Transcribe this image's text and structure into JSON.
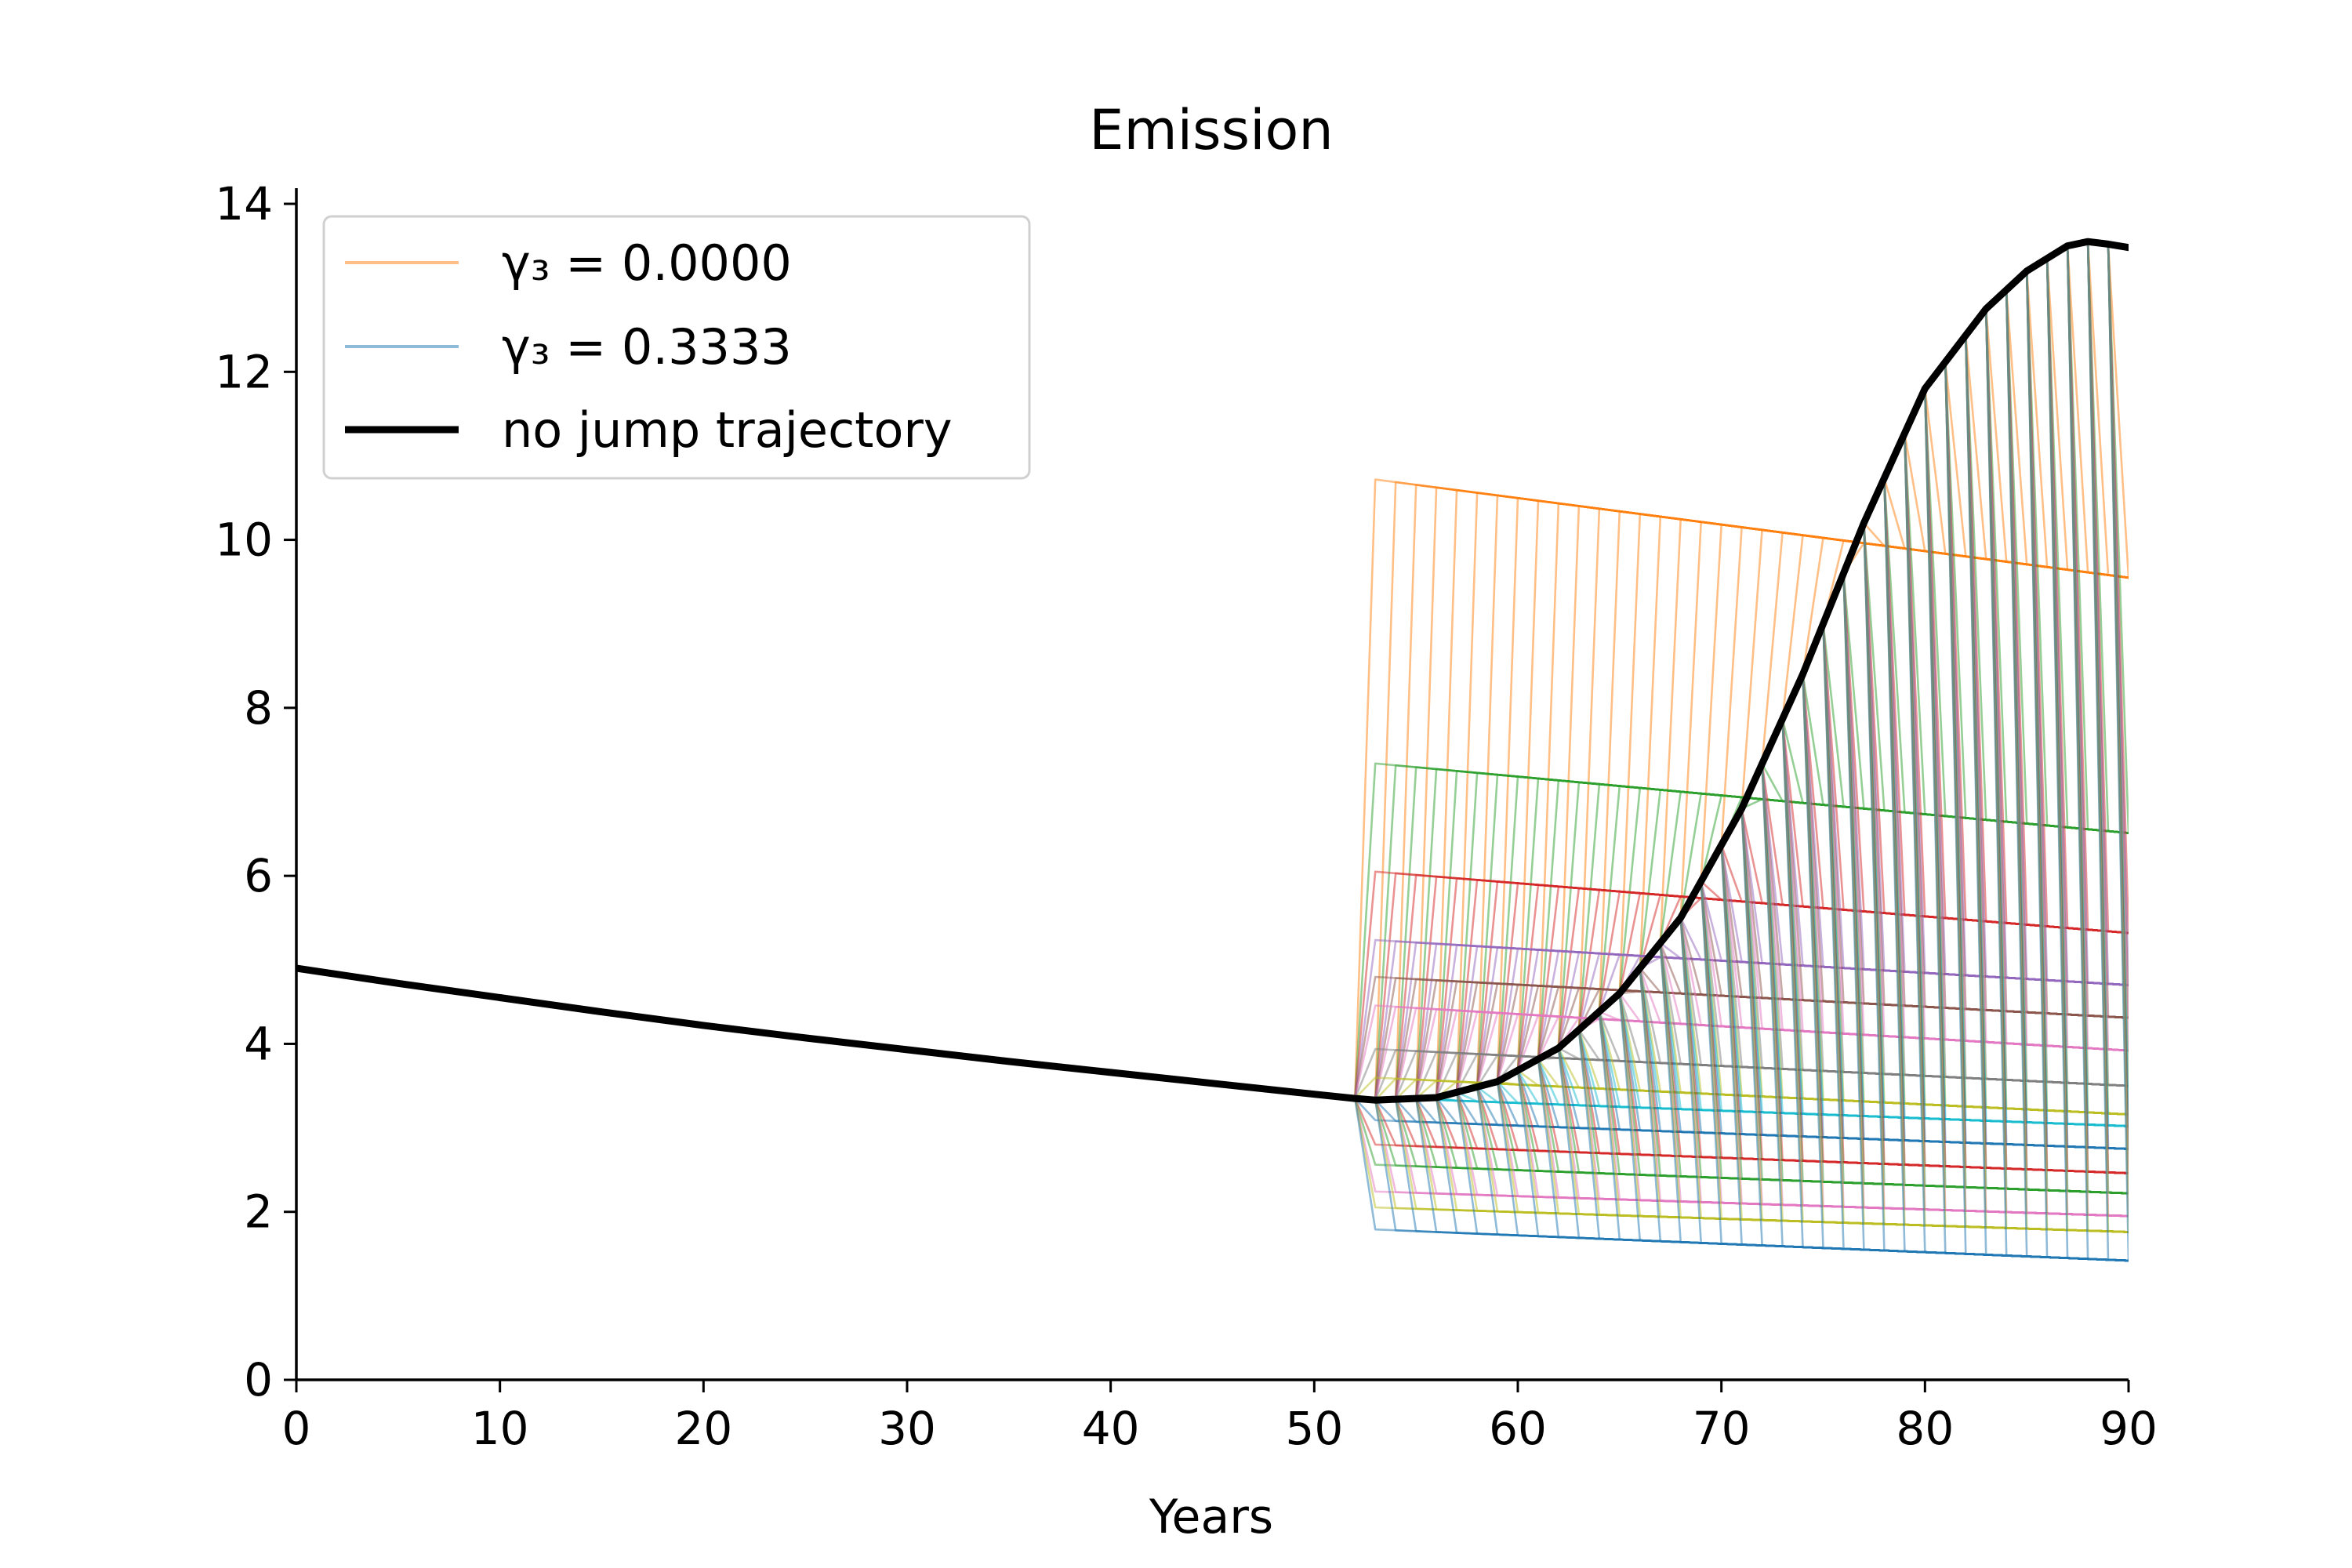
{
  "chart_data": {
    "type": "line",
    "title": "Emission",
    "xlabel": "Years",
    "ylabel": "",
    "xlim": [
      0,
      90
    ],
    "ylim": [
      0,
      14
    ],
    "xticks": [
      0,
      10,
      20,
      30,
      40,
      50,
      60,
      70,
      80,
      90
    ],
    "yticks": [
      0,
      2,
      4,
      6,
      8,
      10,
      12,
      14
    ],
    "legend_position": "upper-left",
    "legend": [
      {
        "label": "γ₃ = 0.0000",
        "color": "#ff7f0e",
        "style": "thin-faded"
      },
      {
        "label": "γ₃ = 0.3333",
        "color": "#1f77b4",
        "style": "thin-faded"
      },
      {
        "label": "no jump trajectory",
        "color": "#000000",
        "style": "thick"
      }
    ],
    "no_jump_trajectory": {
      "x": [
        0,
        5,
        10,
        15,
        20,
        25,
        30,
        35,
        40,
        45,
        50,
        52,
        53,
        56,
        59,
        62,
        65,
        68,
        71,
        74,
        77,
        80,
        83,
        85,
        87,
        88,
        89,
        90
      ],
      "y": [
        4.9,
        4.72,
        4.55,
        4.38,
        4.22,
        4.07,
        3.93,
        3.79,
        3.66,
        3.53,
        3.4,
        3.35,
        3.33,
        3.36,
        3.55,
        3.95,
        4.6,
        5.5,
        6.8,
        8.4,
        10.2,
        11.8,
        12.75,
        13.2,
        13.5,
        13.55,
        13.52,
        13.48
      ]
    },
    "jump_families": [
      {
        "color": "#ff7f0e",
        "post_jump_start": 10.75,
        "post_jump_end": 9.55
      },
      {
        "color": "#2ca02c",
        "post_jump_start": 7.35,
        "post_jump_end": 6.5
      },
      {
        "color": "#d62728",
        "post_jump_start": 6.05,
        "post_jump_end": 5.3
      },
      {
        "color": "#9467bd",
        "post_jump_start": 5.25,
        "post_jump_end": 4.7
      },
      {
        "color": "#8c564b",
        "post_jump_start": 4.8,
        "post_jump_end": 4.3
      },
      {
        "color": "#e377c2",
        "post_jump_start": 4.45,
        "post_jump_end": 3.9
      },
      {
        "color": "#7f7f7f",
        "post_jump_start": 3.95,
        "post_jump_end": 3.5
      },
      {
        "color": "#bcbd22",
        "post_jump_start": 3.6,
        "post_jump_end": 3.15
      },
      {
        "color": "#17becf",
        "post_jump_start": 3.35,
        "post_jump_end": 3.0
      },
      {
        "color": "#1f77b4",
        "post_jump_start": 3.1,
        "post_jump_end": 2.75
      },
      {
        "color": "#d62728",
        "post_jump_start": 2.8,
        "post_jump_end": 2.45
      },
      {
        "color": "#2ca02c",
        "post_jump_start": 2.55,
        "post_jump_end": 2.2
      },
      {
        "color": "#e377c2",
        "post_jump_start": 2.25,
        "post_jump_end": 1.95
      },
      {
        "color": "#bcbd22",
        "post_jump_start": 2.05,
        "post_jump_end": 1.75
      },
      {
        "color": "#1f77b4",
        "post_jump_start": 1.78,
        "post_jump_end": 1.4
      }
    ],
    "jump_start_years": [
      52,
      53,
      54,
      55,
      56,
      57,
      58,
      59,
      60,
      61,
      62,
      63,
      64,
      65,
      66,
      67,
      68,
      69,
      70,
      71,
      72,
      73,
      74,
      75,
      76,
      77,
      78,
      79,
      80,
      81,
      82,
      83,
      84,
      85,
      86,
      87,
      88,
      89
    ]
  }
}
